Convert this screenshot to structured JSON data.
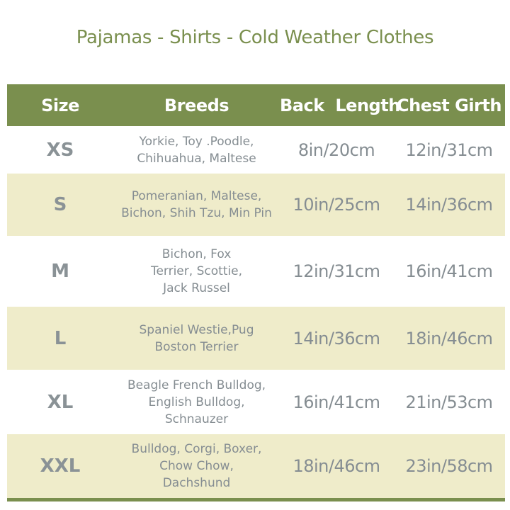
{
  "title": "Pajamas - Shirts - Cold Weather Clothes",
  "colors": {
    "header": "#7a8f4e",
    "alt_row": "#efecca",
    "text": "#858d92"
  },
  "headers": [
    "Size",
    "Breeds",
    "Back  Length",
    "Chest Girth"
  ],
  "rows": [
    {
      "size": "XS",
      "breeds": [
        "Yorkie, Toy .Poodle,",
        "Chihuahua, Maltese"
      ],
      "back": "8in/20cm",
      "chest": "12in/31cm"
    },
    {
      "size": "S",
      "breeds": [
        "Pomeranian, Maltese,",
        "Bichon, Shih Tzu, Min Pin"
      ],
      "back": "10in/25cm",
      "chest": "14in/36cm"
    },
    {
      "size": "M",
      "breeds": [
        "Bichon, Fox",
        "Terrier, Scottie,",
        "Jack Russel"
      ],
      "back": "12in/31cm",
      "chest": "16in/41cm"
    },
    {
      "size": "L",
      "breeds": [
        "Spaniel Westie,Pug",
        "Boston Terrier"
      ],
      "back": "14in/36cm",
      "chest": "18in/46cm"
    },
    {
      "size": "XL",
      "breeds": [
        "Beagle French Bulldog,",
        "English Bulldog,",
        "Schnauzer"
      ],
      "back": "16in/41cm",
      "chest": "21in/53cm"
    },
    {
      "size": "XXL",
      "breeds": [
        "Bulldog, Corgi, Boxer,",
        "Chow Chow,",
        "Dachshund"
      ],
      "back": "18in/46cm",
      "chest": "23in/58cm"
    }
  ]
}
